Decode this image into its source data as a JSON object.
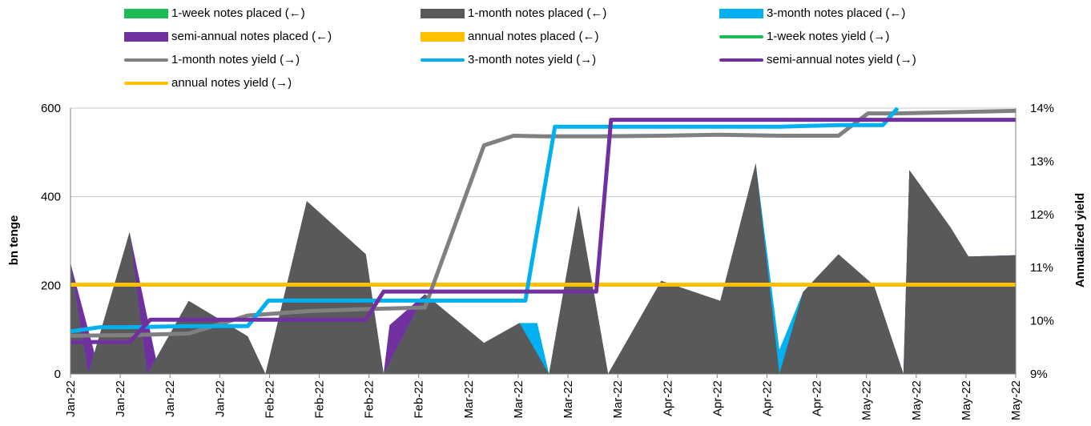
{
  "chart_data": {
    "type": "area",
    "ylabel_left": "bn tenge",
    "ylabel_right": "Annualized yield",
    "ylim_left": [
      0,
      600
    ],
    "ylim_right": [
      9,
      14
    ],
    "yticks_left": [
      "0",
      "200",
      "400",
      "600"
    ],
    "yticks_right": [
      "9%",
      "10%",
      "11%",
      "12%",
      "13%",
      "14%"
    ],
    "x": [
      "Jan-22",
      "Jan-22",
      "Jan-22",
      "Jan-22",
      "Jan-22",
      "Jan-22",
      "Jan-22",
      "Jan-22",
      "Jan-22",
      "Jan-22",
      "Feb-22",
      "Feb-22",
      "Feb-22",
      "Feb-22",
      "Feb-22",
      "Feb-22",
      "Feb-22",
      "Feb-22",
      "Feb-22",
      "Feb-22",
      "Mar-22",
      "Mar-22",
      "Mar-22",
      "Mar-22",
      "Mar-22",
      "Mar-22",
      "Mar-22",
      "Mar-22",
      "Mar-22",
      "Mar-22",
      "Apr-22",
      "Apr-22",
      "Apr-22",
      "Apr-22",
      "Apr-22",
      "Apr-22",
      "Apr-22",
      "Apr-22",
      "Apr-22",
      "Apr-22",
      "May-22",
      "May-22",
      "May-22",
      "May-22",
      "May-22",
      "May-22",
      "May-22",
      "May-22",
      "May-22",
      "May-22",
      "May-22",
      "May-22",
      "May-22",
      "May-22",
      "May-22"
    ],
    "x_tick_labels": [
      "Jan-22",
      "Jan-22",
      "Jan-22",
      "Jan-22",
      "Feb-22",
      "Feb-22",
      "Feb-22",
      "Feb-22",
      "Mar-22",
      "Mar-22",
      "Mar-22",
      "Mar-22",
      "Apr-22",
      "Apr-22",
      "Apr-22",
      "Apr-22",
      "May-22",
      "May-22",
      "May-22",
      "May-22"
    ],
    "legend": [
      {
        "name": "1-week notes placed (←)",
        "color": "#1db954",
        "kind": "area"
      },
      {
        "name": "1-month notes placed (←)",
        "color": "#595959",
        "kind": "area"
      },
      {
        "name": "3-month notes placed (←)",
        "color": "#00b0f0",
        "kind": "area"
      },
      {
        "name": "semi-annual notes placed (←)",
        "color": "#7030a0",
        "kind": "area"
      },
      {
        "name": "annual notes placed (←)",
        "color": "#ffc000",
        "kind": "area"
      },
      {
        "name": "1-week notes yield (→)",
        "color": "#1db954",
        "kind": "line"
      },
      {
        "name": "1-month notes yield (→)",
        "color": "#808080",
        "kind": "line"
      },
      {
        "name": "3-month notes yield (→)",
        "color": "#00b0f0",
        "kind": "line"
      },
      {
        "name": "semi-annual notes yield (→)",
        "color": "#7030a0",
        "kind": "line"
      },
      {
        "name": "annual notes yield (→)",
        "color": "#ffc000",
        "kind": "line"
      }
    ],
    "series_areas": [
      {
        "name": "semi-annual notes placed (←)",
        "color": "#7030a0",
        "points": [
          [
            0,
            250
          ],
          [
            0.5,
            0
          ],
          [
            1,
            320
          ],
          [
            1.5,
            0
          ],
          [
            2,
            165
          ],
          [
            3,
            85
          ],
          [
            3.3,
            0
          ],
          [
            4,
            390
          ],
          [
            5,
            270
          ],
          [
            5.3,
            0
          ],
          [
            5.4,
            110
          ],
          [
            6,
            180
          ],
          [
            7,
            70
          ],
          [
            7.6,
            115
          ],
          [
            8.1,
            0
          ],
          [
            8.6,
            380
          ],
          [
            9.1,
            0
          ],
          [
            10,
            210
          ],
          [
            11,
            165
          ],
          [
            11.6,
            475
          ],
          [
            12,
            0
          ],
          [
            12.4,
            185
          ],
          [
            13,
            270
          ],
          [
            13.6,
            200
          ],
          [
            14.1,
            0
          ],
          [
            14.2,
            460
          ],
          [
            14.9,
            330
          ],
          [
            15.2,
            265
          ],
          [
            16,
            268
          ]
        ]
      },
      {
        "name": "3-month notes placed (←)",
        "color": "#00b0f0",
        "points": [
          [
            0,
            250
          ],
          [
            0.3,
            0
          ],
          [
            1,
            320
          ],
          [
            1.3,
            0
          ],
          [
            2,
            165
          ],
          [
            3,
            85
          ],
          [
            3.3,
            0
          ],
          [
            4,
            390
          ],
          [
            5,
            270
          ],
          [
            5.3,
            0
          ],
          [
            6,
            180
          ],
          [
            7,
            70
          ],
          [
            7.6,
            115
          ],
          [
            7.9,
            115
          ],
          [
            8.1,
            0
          ],
          [
            8.6,
            380
          ],
          [
            9.1,
            0
          ],
          [
            10,
            210
          ],
          [
            11,
            165
          ],
          [
            11.6,
            475
          ],
          [
            12,
            55
          ],
          [
            12.4,
            185
          ],
          [
            13,
            270
          ],
          [
            13.6,
            200
          ],
          [
            13.85,
            100
          ],
          [
            14.1,
            0
          ],
          [
            14.2,
            460
          ],
          [
            14.9,
            330
          ],
          [
            15.2,
            265
          ],
          [
            16,
            268
          ]
        ]
      },
      {
        "name": "1-month notes placed (←)",
        "color": "#595959",
        "points": [
          [
            0,
            250
          ],
          [
            0.3,
            0
          ],
          [
            1,
            320
          ],
          [
            1.3,
            0
          ],
          [
            2,
            165
          ],
          [
            3,
            85
          ],
          [
            3.3,
            0
          ],
          [
            4,
            390
          ],
          [
            5,
            270
          ],
          [
            5.3,
            0
          ],
          [
            6,
            180
          ],
          [
            7,
            70
          ],
          [
            7.6,
            115
          ],
          [
            8.1,
            0
          ],
          [
            8.6,
            380
          ],
          [
            9.1,
            0
          ],
          [
            10,
            210
          ],
          [
            11,
            165
          ],
          [
            11.6,
            475
          ],
          [
            12,
            0
          ],
          [
            12.4,
            185
          ],
          [
            13,
            270
          ],
          [
            13.6,
            200
          ],
          [
            14.1,
            0
          ],
          [
            14.2,
            460
          ],
          [
            14.9,
            330
          ],
          [
            15.2,
            265
          ],
          [
            16,
            268
          ]
        ]
      }
    ],
    "series_lines": [
      {
        "name": "annual notes yield (→)",
        "color": "#ffc000",
        "points": [
          [
            0,
            10.68
          ],
          [
            16,
            10.68
          ]
        ]
      },
      {
        "name": "1-month notes yield (→)",
        "color": "#808080",
        "points": [
          [
            0,
            9.72
          ],
          [
            1,
            9.73
          ],
          [
            2,
            9.76
          ],
          [
            3,
            10.1
          ],
          [
            4,
            10.18
          ],
          [
            5,
            10.22
          ],
          [
            6,
            10.25
          ],
          [
            7,
            13.3
          ],
          [
            7.5,
            13.48
          ],
          [
            8,
            13.47
          ],
          [
            9,
            13.47
          ],
          [
            10,
            13.48
          ],
          [
            11,
            13.5
          ],
          [
            12,
            13.48
          ],
          [
            13,
            13.48
          ],
          [
            13.5,
            13.9
          ],
          [
            14,
            13.9
          ],
          [
            16,
            13.95
          ]
        ]
      },
      {
        "name": "3-month notes yield (→)",
        "color": "#00b0f0",
        "points": [
          [
            0,
            9.8
          ],
          [
            0.5,
            9.88
          ],
          [
            1,
            9.88
          ],
          [
            2,
            9.9
          ],
          [
            3,
            9.9
          ],
          [
            3.35,
            10.38
          ],
          [
            4,
            10.38
          ],
          [
            5,
            10.38
          ],
          [
            6,
            10.38
          ],
          [
            7,
            10.38
          ],
          [
            7.7,
            10.38
          ],
          [
            8.2,
            13.65
          ],
          [
            9,
            13.65
          ],
          [
            10,
            13.65
          ],
          [
            11,
            13.65
          ],
          [
            12,
            13.65
          ],
          [
            13,
            13.68
          ],
          [
            13.75,
            13.68
          ],
          [
            14,
            14.05
          ]
        ]
      },
      {
        "name": "semi-annual notes yield (→)",
        "color": "#7030a0",
        "points": [
          [
            0,
            9.6
          ],
          [
            1,
            9.6
          ],
          [
            1.35,
            10.02
          ],
          [
            2,
            10.02
          ],
          [
            3,
            10.02
          ],
          [
            4,
            10.02
          ],
          [
            5,
            10.02
          ],
          [
            5.3,
            10.55
          ],
          [
            6,
            10.55
          ],
          [
            7,
            10.55
          ],
          [
            8,
            10.55
          ],
          [
            8.9,
            10.55
          ],
          [
            9.15,
            13.78
          ],
          [
            10,
            13.78
          ],
          [
            11,
            13.78
          ],
          [
            12,
            13.78
          ],
          [
            13,
            13.78
          ],
          [
            14,
            13.78
          ],
          [
            15,
            13.78
          ],
          [
            16,
            13.78
          ]
        ]
      }
    ]
  }
}
